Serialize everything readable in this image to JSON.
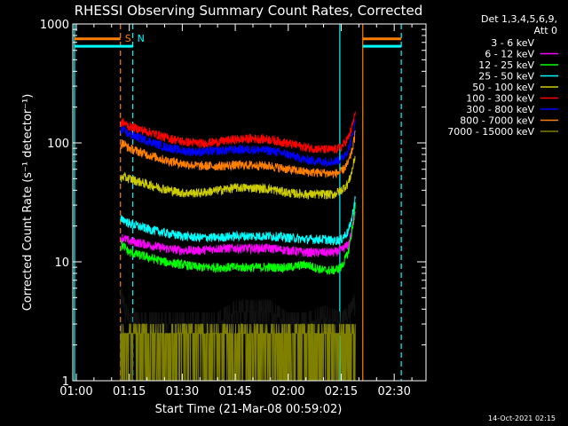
{
  "chart_data": {
    "type": "line",
    "title": "RHESSI Observing Summary Count Rates, Corrected",
    "xlabel": "Start Time (21-Mar-08 00:59:02)",
    "ylabel": "Corrected Count Rate (s⁻¹ detector⁻¹)",
    "y_scale": "log",
    "ylim": [
      1,
      1000
    ],
    "xlim_min": [
      59.0,
      159.0
    ],
    "x_ticks": [
      {
        "t": 60,
        "label": "01:00"
      },
      {
        "t": 75,
        "label": "01:15"
      },
      {
        "t": 90,
        "label": "01:30"
      },
      {
        "t": 105,
        "label": "01:45"
      },
      {
        "t": 120,
        "label": "02:00"
      },
      {
        "t": 135,
        "label": "02:15"
      },
      {
        "t": 150,
        "label": "02:30"
      }
    ],
    "y_ticks": [
      {
        "v": 1,
        "label": "1"
      },
      {
        "v": 10,
        "label": "10"
      },
      {
        "v": 100,
        "label": "100"
      },
      {
        "v": 1000,
        "label": "1000"
      }
    ],
    "legend": {
      "header": [
        "Det 1,3,4,5,6,9,",
        "Att 0"
      ],
      "placement": "right"
    },
    "series": [
      {
        "name": "3 - 6 keV",
        "color": "#000000",
        "x": [
          72.5,
          73,
          75,
          80,
          85,
          90,
          95,
          100,
          105,
          110,
          115,
          120,
          125,
          130,
          133,
          135,
          137,
          138,
          139
        ],
        "y": [
          5,
          4.5,
          3,
          3,
          3,
          3,
          3,
          3,
          3.8,
          3.8,
          3.8,
          3,
          3,
          3.4,
          3.2,
          3,
          3.4,
          3.8,
          4.5
        ]
      },
      {
        "name": "6 - 12 keV",
        "color": "#ff00ff",
        "x": [
          72.5,
          73,
          75,
          80,
          85,
          90,
          95,
          100,
          105,
          110,
          115,
          120,
          125,
          130,
          133,
          135,
          137,
          138,
          139
        ],
        "y": [
          15,
          16,
          15,
          14,
          13,
          12.5,
          12.5,
          13,
          13,
          13,
          13,
          12.5,
          12,
          12,
          12,
          12.5,
          14,
          18,
          27
        ]
      },
      {
        "name": "12 - 25 keV",
        "color": "#00ff00",
        "x": [
          72.5,
          73,
          75,
          80,
          85,
          90,
          95,
          100,
          105,
          110,
          115,
          120,
          125,
          130,
          133,
          135,
          137,
          138,
          139
        ],
        "y": [
          13,
          14,
          12,
          11,
          10,
          9.5,
          9,
          9,
          9,
          9,
          9,
          9,
          9.5,
          8.5,
          8.5,
          9,
          12,
          18,
          30
        ]
      },
      {
        "name": "25 - 50 keV",
        "color": "#00ffff",
        "x": [
          72.5,
          73,
          75,
          80,
          85,
          90,
          95,
          100,
          105,
          110,
          115,
          120,
          125,
          130,
          133,
          135,
          137,
          138,
          139
        ],
        "y": [
          22,
          23,
          21,
          19,
          17.5,
          16.5,
          16,
          16,
          16.5,
          16.5,
          16.5,
          16,
          15.5,
          15.5,
          15,
          15.5,
          18,
          23,
          35
        ]
      },
      {
        "name": "50 - 100 keV",
        "color": "#cccc00",
        "x": [
          72.5,
          73,
          75,
          80,
          85,
          90,
          95,
          100,
          105,
          110,
          115,
          120,
          125,
          130,
          133,
          135,
          137,
          138,
          139
        ],
        "y": [
          48,
          52,
          50,
          45,
          41,
          38,
          38,
          40,
          42,
          42,
          41,
          38,
          37,
          37,
          37,
          40,
          46,
          57,
          80
        ]
      },
      {
        "name": "100 - 300 keV",
        "color": "#ff0000",
        "x": [
          72.5,
          73,
          75,
          80,
          85,
          90,
          95,
          100,
          105,
          110,
          115,
          120,
          125,
          130,
          133,
          135,
          137,
          138,
          139
        ],
        "y": [
          140,
          150,
          138,
          125,
          112,
          103,
          99,
          102,
          107,
          109,
          107,
          99,
          92,
          88,
          88,
          92,
          110,
          135,
          180
        ]
      },
      {
        "name": "300 - 800 keV",
        "color": "#0000ff",
        "x": [
          72.5,
          73,
          75,
          80,
          85,
          90,
          95,
          100,
          105,
          110,
          115,
          120,
          125,
          130,
          133,
          135,
          137,
          138,
          139
        ],
        "y": [
          125,
          130,
          118,
          105,
          93,
          86,
          84,
          86,
          88,
          88,
          86,
          80,
          72,
          70,
          70,
          73,
          88,
          110,
          150
        ]
      },
      {
        "name": "800 - 7000 keV",
        "color": "#ff7f00",
        "x": [
          72.5,
          73,
          75,
          80,
          85,
          90,
          95,
          100,
          105,
          110,
          115,
          120,
          125,
          130,
          133,
          135,
          137,
          138,
          139
        ],
        "y": [
          95,
          100,
          90,
          80,
          72,
          67,
          64,
          64,
          65,
          65,
          64,
          60,
          57,
          56,
          55,
          57,
          68,
          85,
          120
        ]
      },
      {
        "name": "7000 - 15000 keV",
        "color": "#808000",
        "x": [
          72.5,
          73,
          75,
          80,
          85,
          90,
          95,
          100,
          105,
          110,
          115,
          120,
          125,
          130,
          133,
          135,
          137,
          138,
          139
        ],
        "y": [
          2.5,
          3,
          2.5,
          2.5,
          2.5,
          2.5,
          2.5,
          2.5,
          2.5,
          2.5,
          2.5,
          2.5,
          2.5,
          2.5,
          2.5,
          2.5,
          2.8,
          3.5,
          7
        ]
      }
    ],
    "markers": [
      {
        "t": 59.5,
        "color": "#00ffff",
        "style": "solid"
      },
      {
        "t": 72.5,
        "color": "#ff7f00",
        "style": "dashed",
        "label": "S"
      },
      {
        "t": 76.0,
        "color": "#00ffff",
        "style": "dashed",
        "label": "N"
      },
      {
        "t": 134.6,
        "color": "#00ffff",
        "style": "solid"
      },
      {
        "t": 141.1,
        "color": "#ff7f00",
        "style": "solid"
      },
      {
        "t": 152.0,
        "color": "#00ffff",
        "style": "dashed"
      }
    ],
    "flag_bars": [
      {
        "color": "#ff7f00",
        "y": 750,
        "x": [
          59.5,
          72.5
        ]
      },
      {
        "color": "#00ffff",
        "y": 650,
        "x": [
          59.5,
          76.0
        ]
      },
      {
        "color": "#ff7f00",
        "y": 750,
        "x": [
          141.1,
          152.0
        ]
      },
      {
        "color": "#00ffff",
        "y": 650,
        "x": [
          141.1,
          152.0
        ]
      }
    ],
    "grid": false
  },
  "footer": {
    "timestamp": "14-Oct-2021 02:15"
  }
}
